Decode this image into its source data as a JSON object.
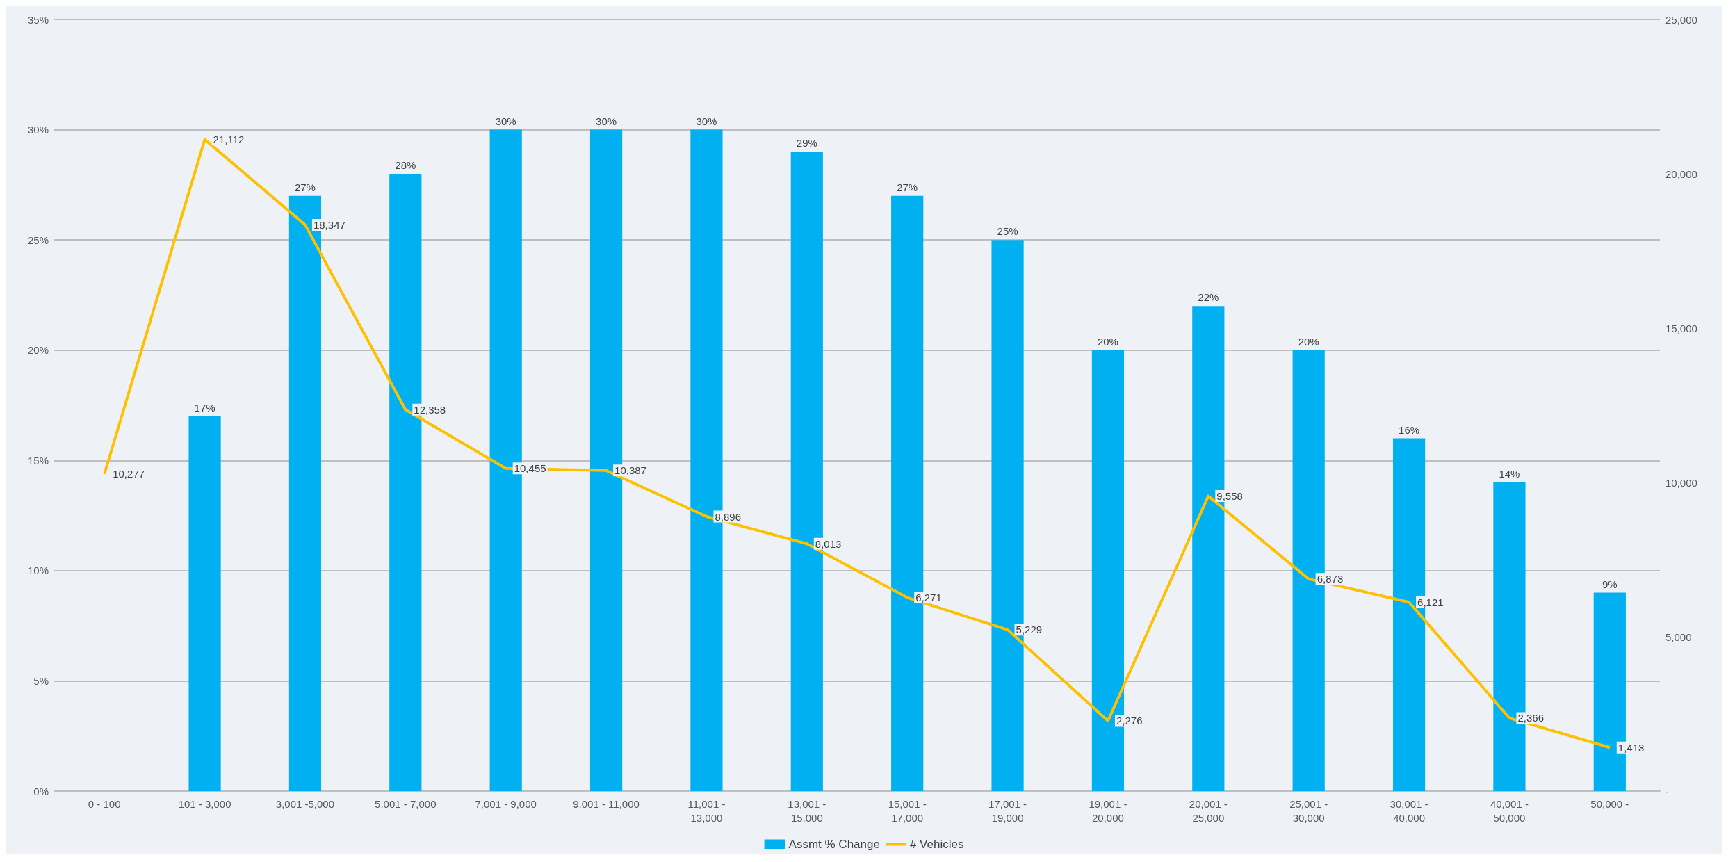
{
  "chart_data": {
    "type": "bar",
    "categories": [
      "0 - 100",
      "101 - 3,000",
      "3,001 -5,000",
      "5,001 - 7,000",
      "7,001 - 9,000",
      "9,001 - 11,000",
      "11,001 - 13,000",
      "13,001 - 15,000",
      "15,001 - 17,000",
      "17,001 - 19,000",
      "19,001 - 20,000",
      "20,001 - 25,000",
      "25,001 - 30,000",
      "30,001 - 40,000",
      "40,001 - 50,000",
      "50,000 -"
    ],
    "series": [
      {
        "name": "Assmt % Change",
        "color": "#00b0f0",
        "values": [
          null,
          17,
          27,
          28,
          30,
          30,
          30,
          29,
          27,
          25,
          20,
          22,
          20,
          16,
          14,
          9
        ],
        "value_labels": [
          null,
          "17%",
          "27%",
          "28%",
          "30%",
          "30%",
          "30%",
          "29%",
          "27%",
          "25%",
          "20%",
          "22%",
          "20%",
          "16%",
          "14%",
          "9%"
        ]
      },
      {
        "name": "# Vehicles",
        "type": "line",
        "axis": "y2",
        "color": "#ffc000",
        "values": [
          10277,
          21112,
          18347,
          12358,
          10455,
          10387,
          8896,
          8013,
          6271,
          5229,
          2276,
          9558,
          6873,
          6121,
          2366,
          1413
        ],
        "value_labels": [
          "10,277",
          "21,112",
          "18,347",
          "12,358",
          "10,455",
          "10,387",
          "8,896",
          "8,013",
          "6,271",
          "5,229",
          "2,276",
          "9,558",
          "6,873",
          "6,121",
          "2,366",
          "1,413"
        ]
      }
    ],
    "ylim": [
      0,
      35
    ],
    "yticks": [
      {
        "value": 0,
        "label": "0%"
      },
      {
        "value": 5,
        "label": "5%"
      },
      {
        "value": 10,
        "label": "10%"
      },
      {
        "value": 15,
        "label": "15%"
      },
      {
        "value": 20,
        "label": "20%"
      },
      {
        "value": 25,
        "label": "25%"
      },
      {
        "value": 30,
        "label": "30%"
      },
      {
        "value": 35,
        "label": "35%"
      }
    ],
    "y2lim": [
      0,
      25000
    ],
    "y2ticks": [
      {
        "value": 0,
        "label": "-"
      },
      {
        "value": 5000,
        "label": "5,000"
      },
      {
        "value": 10000,
        "label": "10,000"
      },
      {
        "value": 15000,
        "label": "15,000"
      },
      {
        "value": 20000,
        "label": "20,000"
      },
      {
        "value": 25000,
        "label": "25,000"
      }
    ],
    "grid": "y",
    "legend": "bottom",
    "marker": "none",
    "line_style": "solid"
  }
}
